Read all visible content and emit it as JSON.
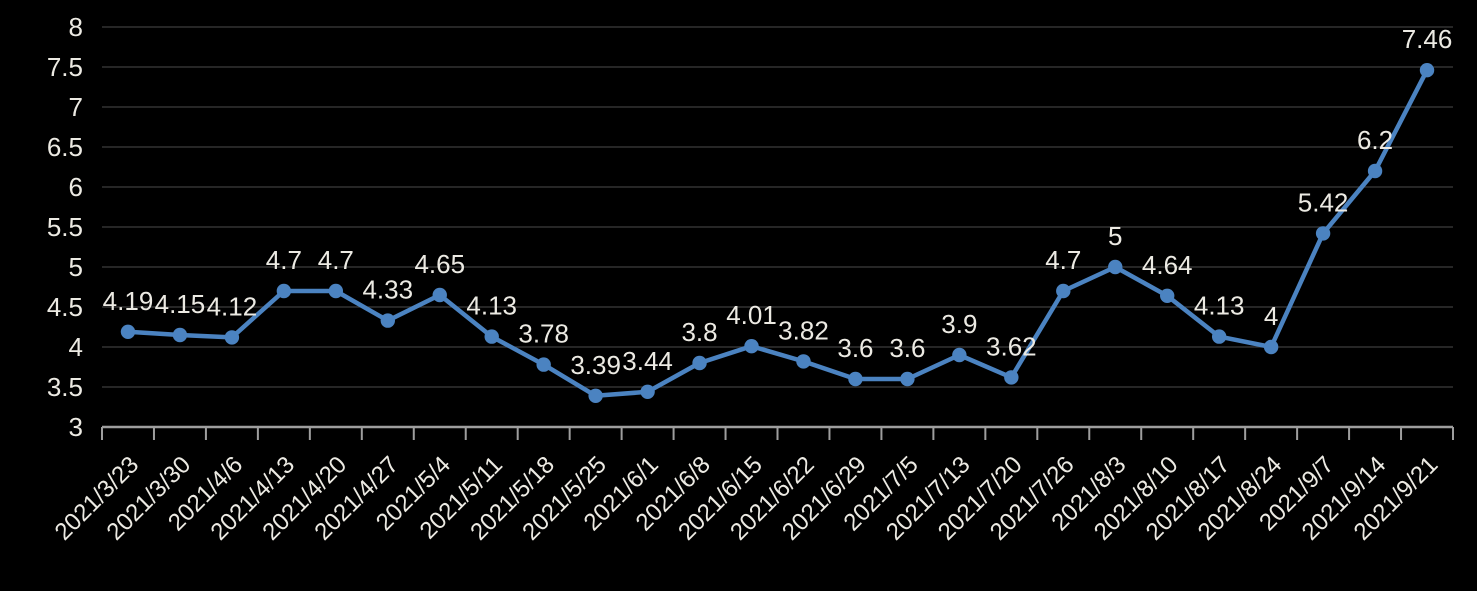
{
  "chart_data": {
    "type": "line",
    "title": "",
    "xlabel": "",
    "ylabel": "",
    "legend_position": "none",
    "grid": true,
    "ylim": [
      3,
      8
    ],
    "ytick_step": 0.5,
    "ytick_labels": [
      "3",
      "3.5",
      "4",
      "4.5",
      "5",
      "5.5",
      "6",
      "6.5",
      "7",
      "7.5",
      "8"
    ],
    "categories": [
      "2021/3/23",
      "2021/3/30",
      "2021/4/6",
      "2021/4/13",
      "2021/4/20",
      "2021/4/27",
      "2021/5/4",
      "2021/5/11",
      "2021/5/18",
      "2021/5/25",
      "2021/6/1",
      "2021/6/8",
      "2021/6/15",
      "2021/6/22",
      "2021/6/29",
      "2021/7/5",
      "2021/7/13",
      "2021/7/20",
      "2021/7/26",
      "2021/8/3",
      "2021/8/10",
      "2021/8/17",
      "2021/8/24",
      "2021/9/7",
      "2021/9/14",
      "2021/9/21"
    ],
    "series": [
      {
        "name": "",
        "values": [
          4.19,
          4.15,
          4.12,
          4.7,
          4.7,
          4.33,
          4.65,
          4.13,
          3.78,
          3.39,
          3.44,
          3.8,
          4.01,
          3.82,
          3.6,
          3.6,
          3.9,
          3.62,
          4.7,
          5,
          4.64,
          4.13,
          4,
          5.42,
          6.2,
          7.46
        ],
        "data_labels": [
          "4.19",
          "4.15",
          "4.12",
          "4.7",
          "4.7",
          "4.33",
          "4.65",
          "4.13",
          "3.78",
          "3.39",
          "3.44",
          "3.8",
          "4.01",
          "3.82",
          "3.6",
          "3.6",
          "3.9",
          "3.62",
          "4.7",
          "5",
          "4.64",
          "4.13",
          "4",
          "5.42",
          "6.2",
          "7.46"
        ]
      }
    ],
    "colors": {
      "background": "#000000",
      "line": "#4b83c1",
      "marker": "#4b83c1",
      "gridline": "#3c3c3c",
      "axis_line": "#9e9e9e",
      "tick_mark": "#9e9e9e",
      "data_label_text": "#eceae3",
      "axis_label_text": "#eceae3"
    }
  }
}
